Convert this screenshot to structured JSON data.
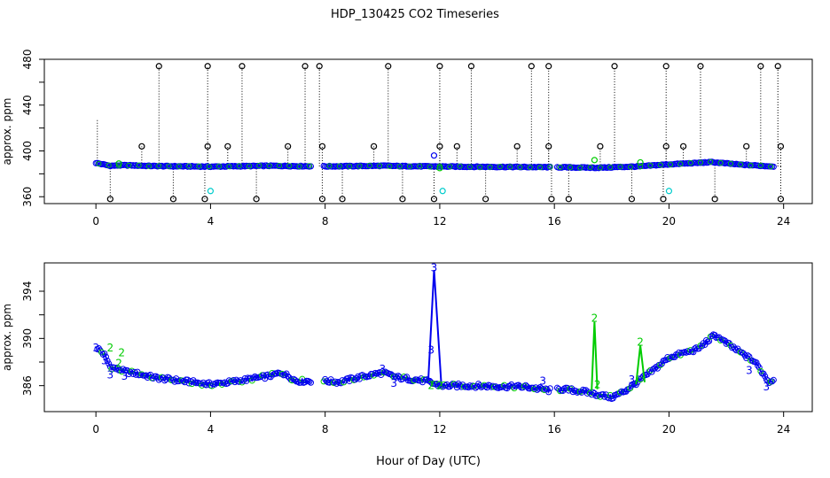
{
  "title": "HDP_130425  CO2 Timeseries",
  "xlabel": "Hour of Day (UTC)",
  "colors": {
    "black": "#000000",
    "blue": "#0000ee",
    "green": "#00cc00",
    "cyan": "#00cccc"
  },
  "chart_data": [
    {
      "type": "scatter",
      "ylabel": "approx. ppm",
      "xlim": [
        -1.8,
        25
      ],
      "ylim": [
        354,
        480
      ],
      "xticks": [
        0,
        4,
        8,
        12,
        16,
        20,
        24
      ],
      "yticks": [
        360,
        380,
        400,
        420,
        440,
        460,
        480
      ],
      "ytick_labels": [
        "360",
        "",
        "400",
        "440",
        "480"
      ],
      "ytick_label_values": [
        360,
        380,
        400,
        440,
        480
      ],
      "baseline_knots": [
        [
          0.0,
          389.5
        ],
        [
          0.5,
          387.0
        ],
        [
          1.0,
          387.5
        ],
        [
          2.0,
          386.8
        ],
        [
          4.0,
          386.3
        ],
        [
          6.0,
          387.0
        ],
        [
          8.0,
          386.5
        ],
        [
          10.0,
          387.0
        ],
        [
          11.5,
          386.5
        ],
        [
          13.0,
          386.2
        ],
        [
          16.0,
          385.8
        ],
        [
          17.5,
          385.3
        ],
        [
          19.0,
          386.5
        ],
        [
          19.8,
          388.0
        ],
        [
          20.2,
          388.5
        ],
        [
          21.5,
          390.2
        ],
        [
          22.5,
          388.0
        ],
        [
          23.6,
          386.5
        ]
      ],
      "gaps": [
        [
          7.5,
          7.9
        ],
        [
          15.9,
          16.1
        ]
      ],
      "outliers_high": [
        2.2,
        3.9,
        5.1,
        7.3,
        7.8,
        10.2,
        12.0,
        13.1,
        15.2,
        15.8,
        18.1,
        19.9,
        21.1,
        23.2,
        23.8
      ],
      "outliers_mid": [
        1.6,
        3.9,
        4.6,
        6.7,
        7.9,
        9.7,
        12.0,
        12.6,
        14.7,
        15.8,
        17.6,
        19.9,
        20.5,
        22.7,
        23.9
      ],
      "outliers_low": [
        0.5,
        2.7,
        3.8,
        5.6,
        7.9,
        8.6,
        10.7,
        11.8,
        13.6,
        15.9,
        16.5,
        18.7,
        19.8,
        21.6,
        23.9
      ],
      "high_value": 474,
      "mid_value": 404,
      "low_value": 358,
      "cyan_points": [
        [
          4.0,
          365
        ],
        [
          12.1,
          365
        ],
        [
          20.0,
          365
        ]
      ],
      "green_points": [
        [
          0.8,
          389
        ],
        [
          17.4,
          392
        ],
        [
          19.0,
          390
        ],
        [
          12.0,
          385
        ]
      ],
      "blue_points": [
        [
          11.8,
          396
        ]
      ]
    },
    {
      "type": "line",
      "ylabel": "approx. ppm",
      "xlim": [
        -1.8,
        25
      ],
      "ylim": [
        383.8,
        396.4
      ],
      "xticks": [
        0,
        4,
        8,
        12,
        16,
        20,
        24
      ],
      "yticks": [
        386,
        388,
        390,
        392,
        394
      ],
      "ytick_labels": [
        "386",
        "390",
        "394"
      ],
      "ytick_label_values": [
        386,
        390,
        394
      ],
      "series": [
        {
          "name": "3",
          "color": "#0000ee"
        },
        {
          "name": "2",
          "color": "#00cc00"
        }
      ],
      "baseline_knots": [
        [
          0.05,
          389.2
        ],
        [
          0.3,
          388.6
        ],
        [
          0.5,
          387.6
        ],
        [
          1.0,
          387.2
        ],
        [
          1.5,
          387.0
        ],
        [
          2.0,
          386.7
        ],
        [
          3.0,
          386.4
        ],
        [
          4.0,
          386.1
        ],
        [
          5.0,
          386.4
        ],
        [
          6.0,
          386.8
        ],
        [
          6.5,
          387.1
        ],
        [
          7.0,
          386.4
        ],
        [
          8.0,
          386.4
        ],
        [
          8.5,
          386.3
        ],
        [
          9.0,
          386.6
        ],
        [
          10.0,
          387.1
        ],
        [
          10.5,
          386.7
        ],
        [
          11.5,
          386.4
        ],
        [
          12.0,
          386.0
        ],
        [
          13.0,
          386.0
        ],
        [
          15.0,
          385.9
        ],
        [
          15.8,
          385.6
        ],
        [
          16.3,
          385.7
        ],
        [
          17.0,
          385.5
        ],
        [
          18.0,
          385.0
        ],
        [
          18.5,
          385.6
        ],
        [
          19.0,
          386.5
        ],
        [
          19.5,
          387.4
        ],
        [
          19.8,
          388.0
        ],
        [
          20.0,
          388.4
        ],
        [
          21.0,
          389.1
        ],
        [
          21.6,
          390.3
        ],
        [
          22.0,
          389.6
        ],
        [
          23.0,
          388.0
        ],
        [
          23.5,
          386.3
        ],
        [
          23.7,
          386.6
        ]
      ],
      "gaps": [
        [
          7.5,
          7.9
        ],
        [
          15.9,
          16.1
        ]
      ],
      "spikes": [
        {
          "series": "3",
          "x": [
            11.6,
            11.8,
            12.05
          ],
          "y": [
            386.5,
            395.8,
            386.3
          ]
        },
        {
          "series": "2",
          "x": [
            17.3,
            17.4,
            17.5
          ],
          "y": [
            385.6,
            391.4,
            385.7
          ]
        },
        {
          "series": "2",
          "x": [
            18.85,
            19.0,
            19.15
          ],
          "y": [
            386.1,
            389.4,
            386.3
          ]
        }
      ],
      "labels": [
        {
          "text": "3",
          "x": 11.8,
          "y": 396.0,
          "series": "3"
        },
        {
          "text": "3",
          "x": 11.7,
          "y": 389.0,
          "series": "3"
        },
        {
          "text": "2",
          "x": 11.7,
          "y": 386.0,
          "series": "2"
        },
        {
          "text": "2",
          "x": 12.0,
          "y": 386.0,
          "series": "2"
        },
        {
          "text": "2",
          "x": 17.4,
          "y": 391.7,
          "series": "2"
        },
        {
          "text": "2",
          "x": 17.5,
          "y": 386.1,
          "series": "2"
        },
        {
          "text": "2",
          "x": 19.0,
          "y": 389.7,
          "series": "2"
        },
        {
          "text": "2",
          "x": 0.5,
          "y": 389.2,
          "series": "2"
        },
        {
          "text": "2",
          "x": 0.9,
          "y": 388.8,
          "series": "2"
        },
        {
          "text": "2",
          "x": 0.8,
          "y": 387.9,
          "series": "2"
        },
        {
          "text": "3",
          "x": 0.0,
          "y": 389.2,
          "series": "3"
        },
        {
          "text": "3",
          "x": 0.3,
          "y": 388.1,
          "series": "3"
        },
        {
          "text": "3",
          "x": 0.5,
          "y": 386.9,
          "series": "3"
        },
        {
          "text": "3",
          "x": 1.0,
          "y": 386.8,
          "series": "3"
        },
        {
          "text": "3",
          "x": 10.0,
          "y": 387.4,
          "series": "3"
        },
        {
          "text": "3",
          "x": 10.4,
          "y": 386.2,
          "series": "3"
        },
        {
          "text": "3",
          "x": 15.6,
          "y": 386.4,
          "series": "3"
        },
        {
          "text": "3",
          "x": 23.4,
          "y": 385.9,
          "series": "3"
        },
        {
          "text": "3",
          "x": 22.8,
          "y": 387.3,
          "series": "3"
        },
        {
          "text": "3",
          "x": 18.7,
          "y": 386.5,
          "series": "3"
        }
      ]
    }
  ]
}
